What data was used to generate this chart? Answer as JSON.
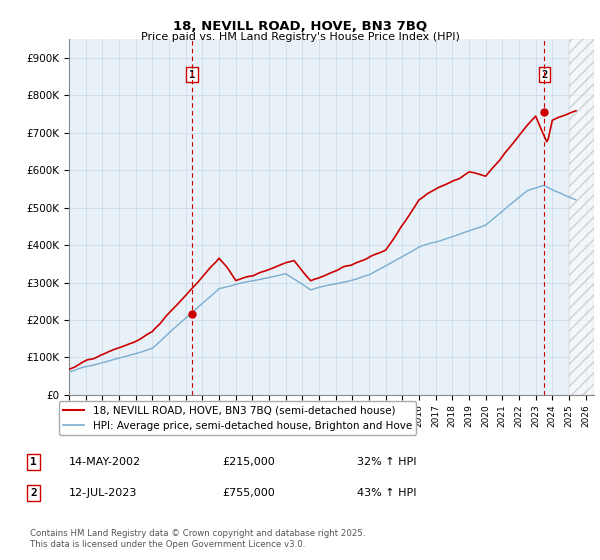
{
  "title_line1": "18, NEVILL ROAD, HOVE, BN3 7BQ",
  "title_line2": "Price paid vs. HM Land Registry's House Price Index (HPI)",
  "ylabel_ticks": [
    "£0",
    "£100K",
    "£200K",
    "£300K",
    "£400K",
    "£500K",
    "£600K",
    "£700K",
    "£800K",
    "£900K"
  ],
  "ytick_values": [
    0,
    100000,
    200000,
    300000,
    400000,
    500000,
    600000,
    700000,
    800000,
    900000
  ],
  "ylim": [
    0,
    950000
  ],
  "xlim_start": 1995.0,
  "xlim_end": 2026.5,
  "color_red": "#cc0000",
  "color_blue": "#7aadcf",
  "color_dashed_red": "#cc0000",
  "grid_color": "#c8d8e8",
  "background_color": "#e8f0f8",
  "sale1_x": 2002.37,
  "sale1_y": 215000,
  "sale1_label": "1",
  "sale2_x": 2023.53,
  "sale2_y": 755000,
  "sale2_label": "2",
  "legend_line1": "18, NEVILL ROAD, HOVE, BN3 7BQ (semi-detached house)",
  "legend_line2": "HPI: Average price, semi-detached house, Brighton and Hove",
  "table_row1": [
    "1",
    "14-MAY-2002",
    "£215,000",
    "32% ↑ HPI"
  ],
  "table_row2": [
    "2",
    "12-JUL-2023",
    "£755,000",
    "43% ↑ HPI"
  ],
  "footnote": "Contains HM Land Registry data © Crown copyright and database right 2025.\nThis data is licensed under the Open Government Licence v3.0.",
  "xtick_years": [
    1995,
    1996,
    1997,
    1998,
    1999,
    2000,
    2001,
    2002,
    2003,
    2004,
    2005,
    2006,
    2007,
    2008,
    2009,
    2010,
    2011,
    2012,
    2013,
    2014,
    2015,
    2016,
    2017,
    2018,
    2019,
    2020,
    2021,
    2022,
    2023,
    2024,
    2025,
    2026
  ],
  "hatch_start": 2025.0,
  "hatch_end": 2026.5
}
